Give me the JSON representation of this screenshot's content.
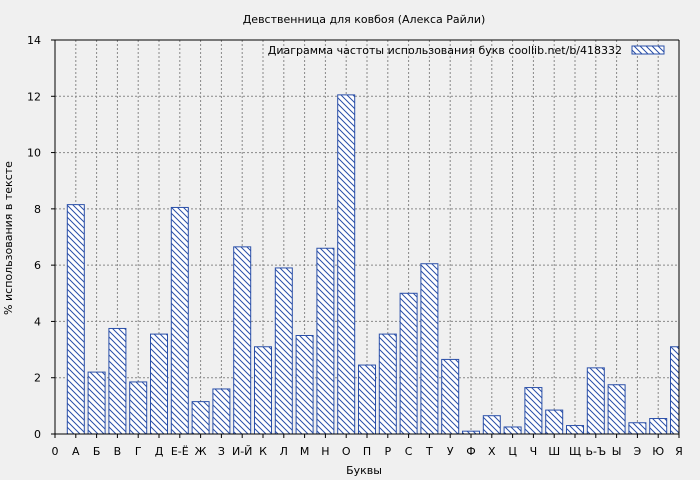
{
  "chart_data": {
    "type": "bar",
    "title": "Девственница для ковбоя (Алекса Райли)",
    "xlabel": "Буквы",
    "ylabel": "% использования в тексте",
    "legend": {
      "label": "Диаграмма частоты использования букв  coollib.net/b/418332",
      "placement": "top-right"
    },
    "categories": [
      "А",
      "Б",
      "В",
      "Г",
      "Д",
      "Е-Ё",
      "Ж",
      "З",
      "И-Й",
      "К",
      "Л",
      "М",
      "Н",
      "О",
      "П",
      "Р",
      "С",
      "Т",
      "У",
      "Ф",
      "Х",
      "Ц",
      "Ч",
      "Ш",
      "Щ",
      "Ь-Ъ",
      "Ы",
      "Э",
      "Ю",
      "Я"
    ],
    "values": [
      8.15,
      2.2,
      3.75,
      1.85,
      3.55,
      8.05,
      1.15,
      1.6,
      6.65,
      3.1,
      5.9,
      3.5,
      6.6,
      12.05,
      2.45,
      3.55,
      5.0,
      6.05,
      2.65,
      0.1,
      0.65,
      0.25,
      1.65,
      0.85,
      0.3,
      2.35,
      1.75,
      0.4,
      0.55,
      3.1
    ],
    "x_tick_labels": [
      "0",
      "А",
      "Б",
      "В",
      "Г",
      "Д",
      "Е-Ё",
      "Ж",
      "З",
      "И-Й",
      "К",
      "Л",
      "М",
      "Н",
      "О",
      "П",
      "Р",
      "С",
      "Т",
      "У",
      "Ф",
      "Х",
      "Ц",
      "Ч",
      "Ш",
      "Щ",
      "Ь-Ъ",
      "Ы",
      "Э",
      "Ю",
      "Я"
    ],
    "y_ticks": [
      0,
      2,
      4,
      6,
      8,
      10,
      12,
      14
    ],
    "ylim": [
      0,
      14
    ],
    "grid": true,
    "colors": {
      "background": "#f0f0f0",
      "bar_stroke": "#2a4fa8",
      "hatch": "#2a4fa8",
      "grid": "#888888",
      "axis": "#000000"
    }
  }
}
